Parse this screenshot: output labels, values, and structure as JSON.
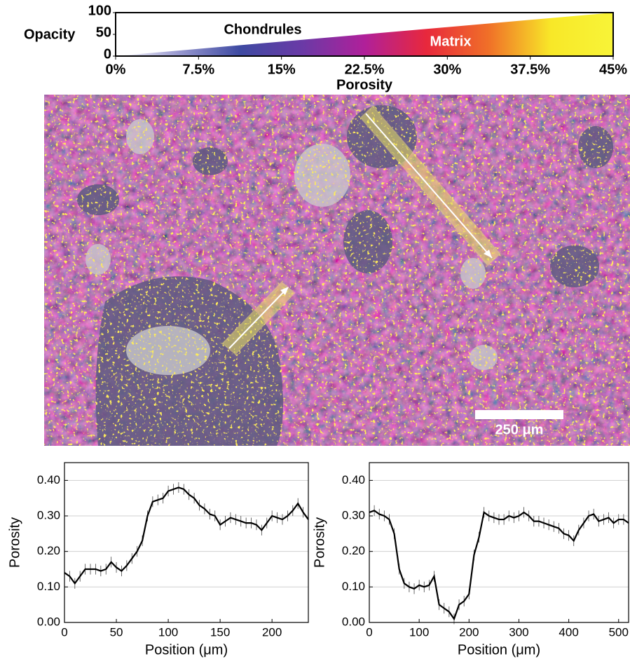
{
  "chart_data": [
    {
      "type": "colorbar",
      "ylabel": "Opacity",
      "xlabel": "Porosity",
      "xlim": [
        0,
        45
      ],
      "ylim": [
        0,
        100
      ],
      "xticks": [
        {
          "value": 0,
          "label": "0%"
        },
        {
          "value": 7.5,
          "label": "7.5%"
        },
        {
          "value": 15,
          "label": "15%"
        },
        {
          "value": 22.5,
          "label": "22.5%"
        },
        {
          "value": 30,
          "label": "30%"
        },
        {
          "value": 37.5,
          "label": "37.5%"
        },
        {
          "value": 45,
          "label": "45%"
        }
      ],
      "yticks": [
        0,
        50,
        100
      ],
      "x": [
        0,
        45
      ],
      "values": [
        0,
        100
      ],
      "colors": [
        "#ffffff",
        "#9a9ad0",
        "#3e4aa2",
        "#6a3aa6",
        "#b0209a",
        "#e8283c",
        "#f07028",
        "#f8e828",
        "#f8f438"
      ],
      "annotations": [
        {
          "text": "Chondrules"
        },
        {
          "text": "Matrix"
        }
      ]
    },
    {
      "type": "line",
      "xlabel": "Position (μm)",
      "ylabel": "Porosity",
      "xlim": [
        0,
        235
      ],
      "ylim": [
        0,
        0.45
      ],
      "xticks": [
        0,
        50,
        100,
        150,
        200
      ],
      "yticks": [
        {
          "value": 0,
          "label": "0.00"
        },
        {
          "value": 0.1,
          "label": "0.10"
        },
        {
          "value": 0.2,
          "label": "0.20"
        },
        {
          "value": 0.3,
          "label": "0.30"
        },
        {
          "value": 0.4,
          "label": "0.40"
        }
      ],
      "grid": true,
      "color": "#000000",
      "error": 0.015,
      "x": [
        0,
        5,
        10,
        15,
        20,
        25,
        30,
        35,
        40,
        45,
        50,
        55,
        60,
        65,
        70,
        75,
        80,
        85,
        90,
        95,
        100,
        105,
        110,
        115,
        120,
        125,
        130,
        135,
        140,
        145,
        150,
        155,
        160,
        165,
        170,
        175,
        180,
        185,
        190,
        195,
        200,
        205,
        210,
        215,
        220,
        225,
        230,
        235
      ],
      "values": [
        0.14,
        0.13,
        0.11,
        0.13,
        0.15,
        0.15,
        0.15,
        0.145,
        0.15,
        0.17,
        0.155,
        0.145,
        0.16,
        0.18,
        0.2,
        0.23,
        0.3,
        0.34,
        0.345,
        0.35,
        0.37,
        0.375,
        0.38,
        0.375,
        0.36,
        0.35,
        0.33,
        0.32,
        0.305,
        0.3,
        0.275,
        0.285,
        0.295,
        0.29,
        0.285,
        0.28,
        0.28,
        0.275,
        0.26,
        0.28,
        0.3,
        0.295,
        0.29,
        0.3,
        0.315,
        0.335,
        0.31,
        0.29
      ]
    },
    {
      "type": "line",
      "xlabel": "Position (μm)",
      "ylabel": "Porosity",
      "xlim": [
        0,
        520
      ],
      "ylim": [
        0,
        0.45
      ],
      "xticks": [
        0,
        100,
        200,
        300,
        400,
        500
      ],
      "yticks": [
        {
          "value": 0,
          "label": "0.00"
        },
        {
          "value": 0.1,
          "label": "0.10"
        },
        {
          "value": 0.2,
          "label": "0.20"
        },
        {
          "value": 0.3,
          "label": "0.30"
        },
        {
          "value": 0.4,
          "label": "0.40"
        }
      ],
      "grid": true,
      "color": "#000000",
      "error": 0.015,
      "x": [
        0,
        10,
        20,
        30,
        40,
        50,
        60,
        70,
        80,
        90,
        100,
        110,
        120,
        130,
        140,
        150,
        160,
        170,
        180,
        190,
        200,
        210,
        220,
        230,
        240,
        250,
        260,
        270,
        280,
        290,
        300,
        310,
        320,
        330,
        340,
        350,
        360,
        370,
        380,
        390,
        400,
        410,
        420,
        430,
        440,
        450,
        460,
        470,
        480,
        490,
        500,
        510,
        520
      ],
      "values": [
        0.31,
        0.315,
        0.305,
        0.3,
        0.29,
        0.25,
        0.15,
        0.11,
        0.1,
        0.095,
        0.105,
        0.1,
        0.105,
        0.13,
        0.05,
        0.04,
        0.03,
        0.01,
        0.05,
        0.06,
        0.08,
        0.19,
        0.24,
        0.31,
        0.3,
        0.295,
        0.29,
        0.29,
        0.3,
        0.295,
        0.3,
        0.31,
        0.3,
        0.285,
        0.285,
        0.28,
        0.275,
        0.27,
        0.265,
        0.25,
        0.245,
        0.23,
        0.26,
        0.28,
        0.3,
        0.305,
        0.285,
        0.29,
        0.295,
        0.28,
        0.29,
        0.29,
        0.28
      ]
    }
  ],
  "image": {
    "scale_bar_label": "250 μm"
  }
}
